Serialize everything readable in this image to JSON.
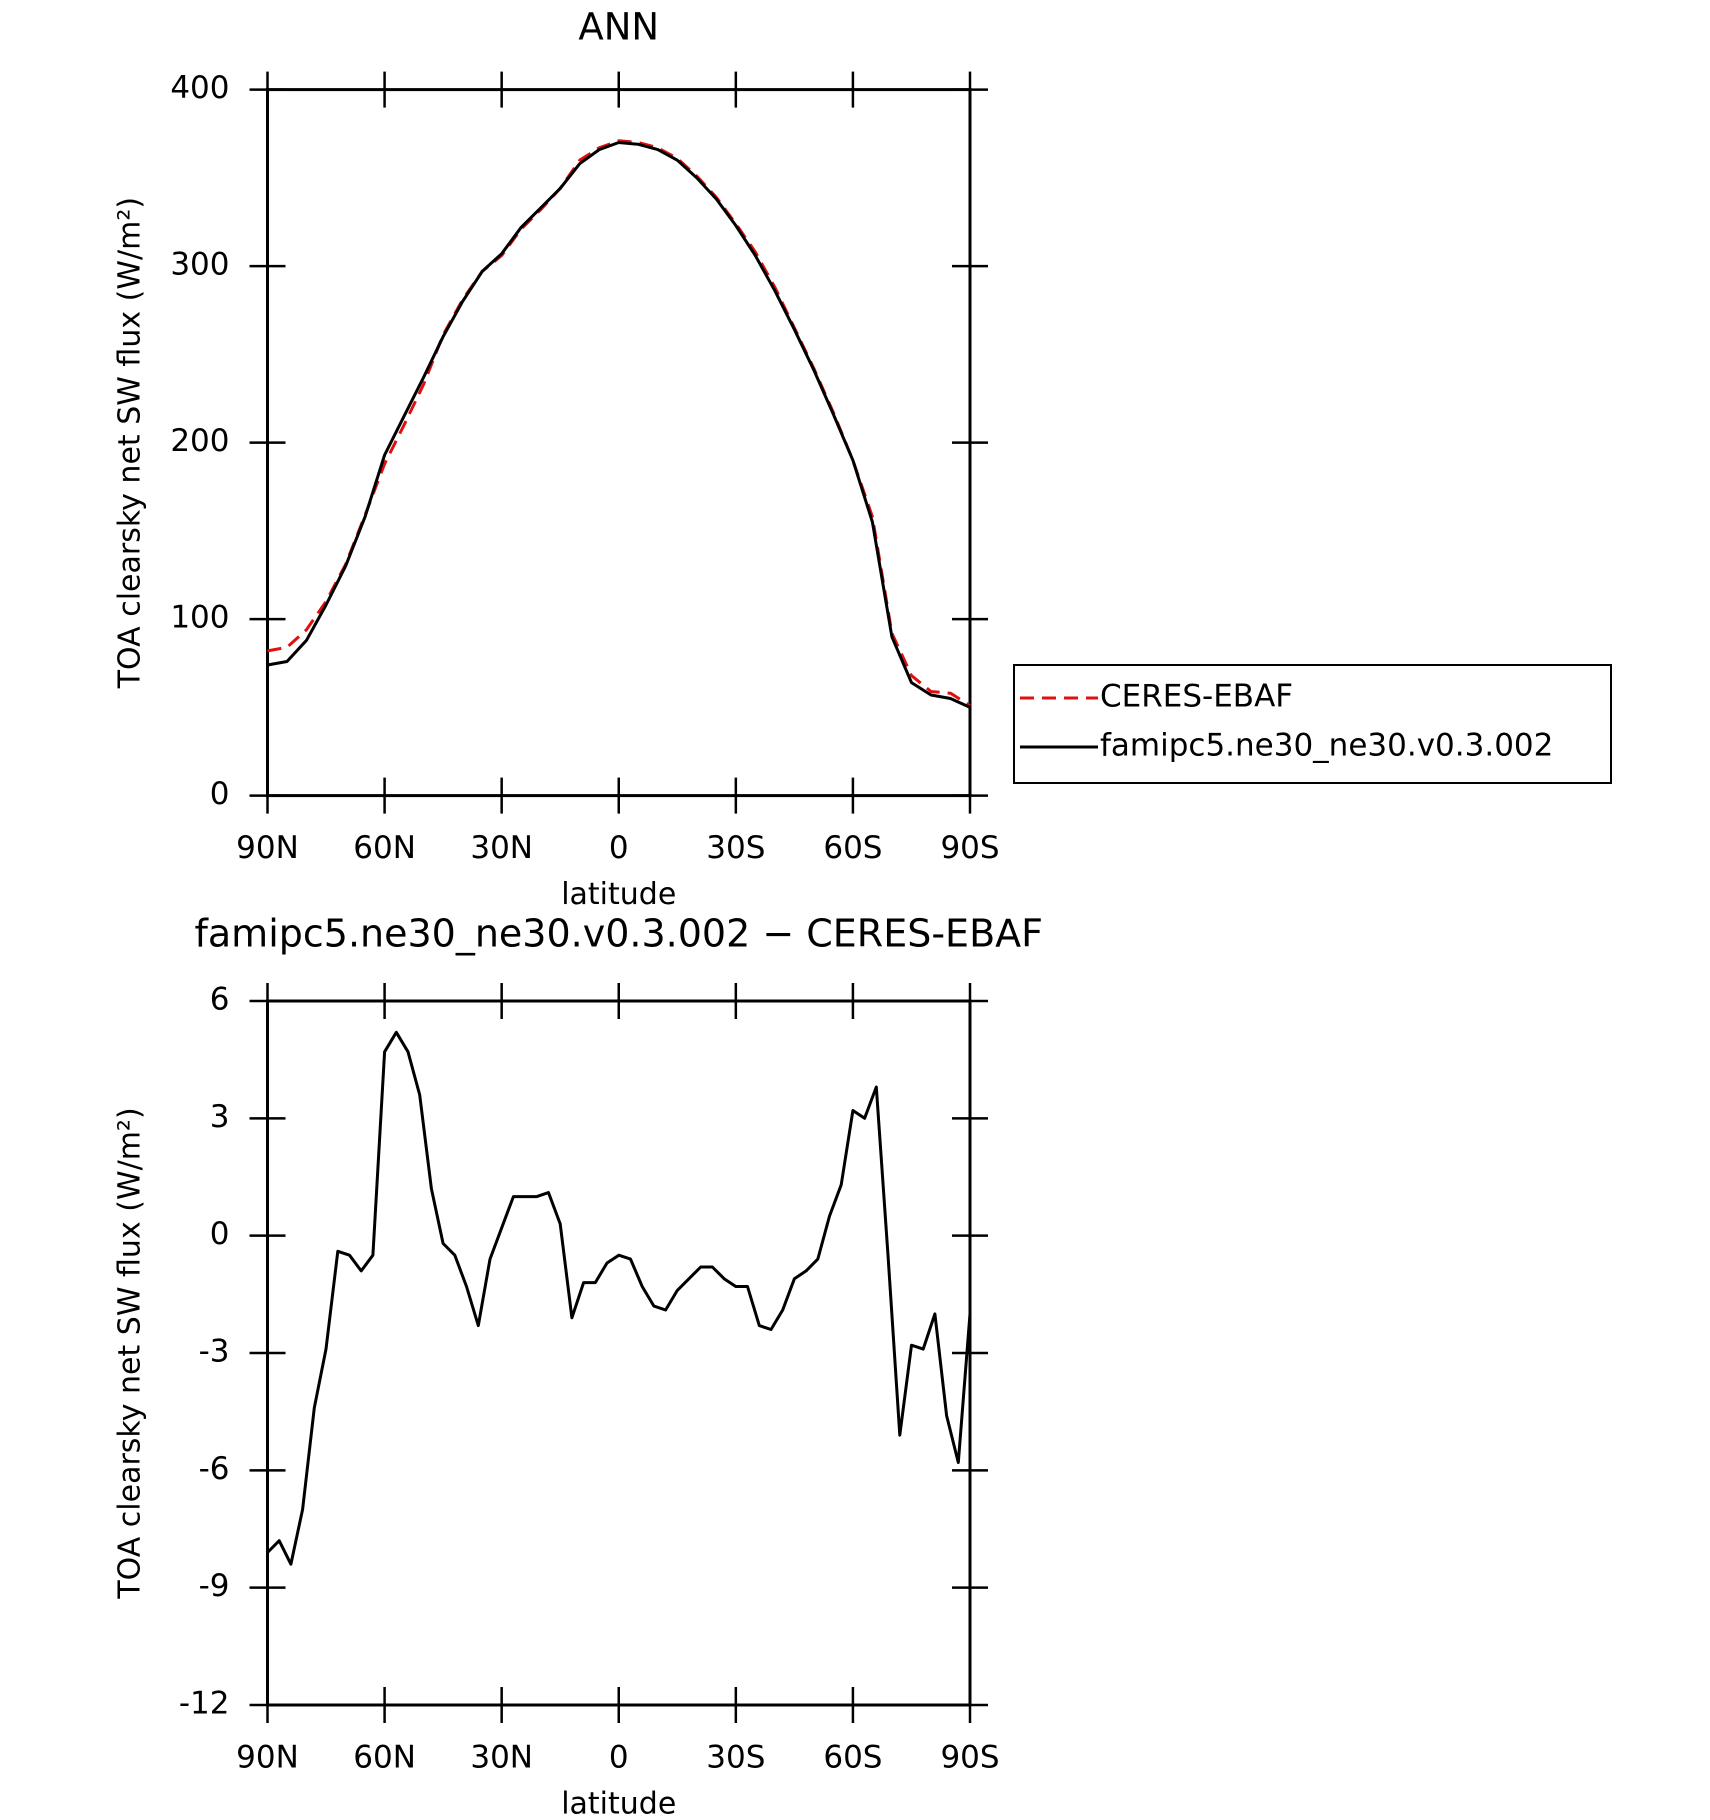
{
  "chart_data": [
    {
      "type": "line",
      "title": "ANN",
      "xlabel": "latitude",
      "ylabel": "TOA clearsky net SW flux (W/m²)",
      "x": [
        90,
        85,
        80,
        75,
        70,
        65,
        60,
        55,
        50,
        45,
        40,
        35,
        30,
        25,
        20,
        15,
        10,
        5,
        0,
        -5,
        -10,
        -15,
        -20,
        -25,
        -30,
        -35,
        -40,
        -45,
        -50,
        -55,
        -60,
        -65,
        -70,
        -75,
        -80,
        -85,
        -90
      ],
      "series": [
        {
          "name": "CERES-EBAF",
          "color": "#e01010",
          "linestyle": "dashed",
          "values": [
            82,
            84,
            94,
            110,
            131,
            159,
            188,
            210,
            233,
            261,
            281,
            297,
            306,
            321,
            332,
            344,
            360,
            367,
            371,
            370,
            367,
            361,
            351,
            339,
            324,
            308,
            288,
            265,
            242,
            217,
            190,
            158,
            92,
            68,
            59,
            58,
            51
          ]
        },
        {
          "name": "famipc5.ne30_ne30.v0.3.002",
          "color": "#000000",
          "linestyle": "solid",
          "values": [
            74,
            76,
            88,
            108,
            130,
            158,
            193,
            215,
            237,
            260,
            280,
            297,
            307,
            322,
            333,
            344,
            358,
            366,
            370,
            369,
            366,
            360,
            350,
            338,
            323,
            306,
            286,
            264,
            241,
            216,
            190,
            155,
            90,
            64,
            57,
            55,
            50
          ]
        }
      ],
      "xlim": [
        90,
        -90
      ],
      "xticks": [
        {
          "value": 90,
          "label": "90N"
        },
        {
          "value": 60,
          "label": "60N"
        },
        {
          "value": 30,
          "label": "30N"
        },
        0,
        {
          "value": -30,
          "label": "30S"
        },
        {
          "value": -60,
          "label": "60S"
        },
        {
          "value": -90,
          "label": "90S"
        }
      ],
      "ylim": [
        0,
        400
      ],
      "yticks": [
        0,
        100,
        200,
        300,
        400
      ],
      "legend": "right"
    },
    {
      "type": "line",
      "title": "famipc5.ne30_ne30.v0.3.002 − CERES-EBAF",
      "xlabel": "latitude",
      "ylabel": "TOA clearsky net SW flux (W/m²)",
      "x": [
        90,
        87,
        84,
        81,
        78,
        75,
        72,
        69,
        66,
        63,
        60,
        57,
        54,
        51,
        48,
        45,
        42,
        39,
        36,
        33,
        30,
        27,
        24,
        21,
        18,
        15,
        12,
        9,
        6,
        3,
        0,
        -3,
        -6,
        -9,
        -12,
        -15,
        -18,
        -21,
        -24,
        -27,
        -30,
        -33,
        -36,
        -39,
        -42,
        -45,
        -48,
        -51,
        -54,
        -57,
        -60,
        -63,
        -66,
        -69,
        -72,
        -75,
        -78,
        -81,
        -84,
        -87,
        -90
      ],
      "values": [
        -8.1,
        -7.8,
        -8.4,
        -7.0,
        -4.4,
        -2.9,
        -0.4,
        -0.5,
        -0.9,
        -0.5,
        4.7,
        5.2,
        4.7,
        3.6,
        1.2,
        -0.2,
        -0.5,
        -1.3,
        -2.3,
        -0.6,
        0.2,
        1.0,
        1.0,
        1.0,
        1.1,
        0.3,
        -2.1,
        -1.2,
        -1.2,
        -0.7,
        -0.5,
        -0.6,
        -1.3,
        -1.8,
        -1.9,
        -1.4,
        -1.1,
        -0.8,
        -0.8,
        -1.1,
        -1.3,
        -1.3,
        -2.3,
        -2.4,
        -1.9,
        -1.1,
        -0.9,
        -0.6,
        0.5,
        1.3,
        3.2,
        3.0,
        3.8,
        -0.5,
        -5.1,
        -2.8,
        -2.9,
        -2.0,
        -4.6,
        -5.8,
        -2.0
      ],
      "color": "#000000",
      "xlim": [
        90,
        -90
      ],
      "xticks": [
        {
          "value": 90,
          "label": "90N"
        },
        {
          "value": 60,
          "label": "60N"
        },
        {
          "value": 30,
          "label": "30N"
        },
        0,
        {
          "value": -30,
          "label": "30S"
        },
        {
          "value": -60,
          "label": "60S"
        },
        {
          "value": -90,
          "label": "90S"
        }
      ],
      "ylim": [
        -12,
        6
      ],
      "yticks": [
        -12,
        -9,
        -6,
        -3,
        0,
        3,
        6
      ]
    }
  ]
}
